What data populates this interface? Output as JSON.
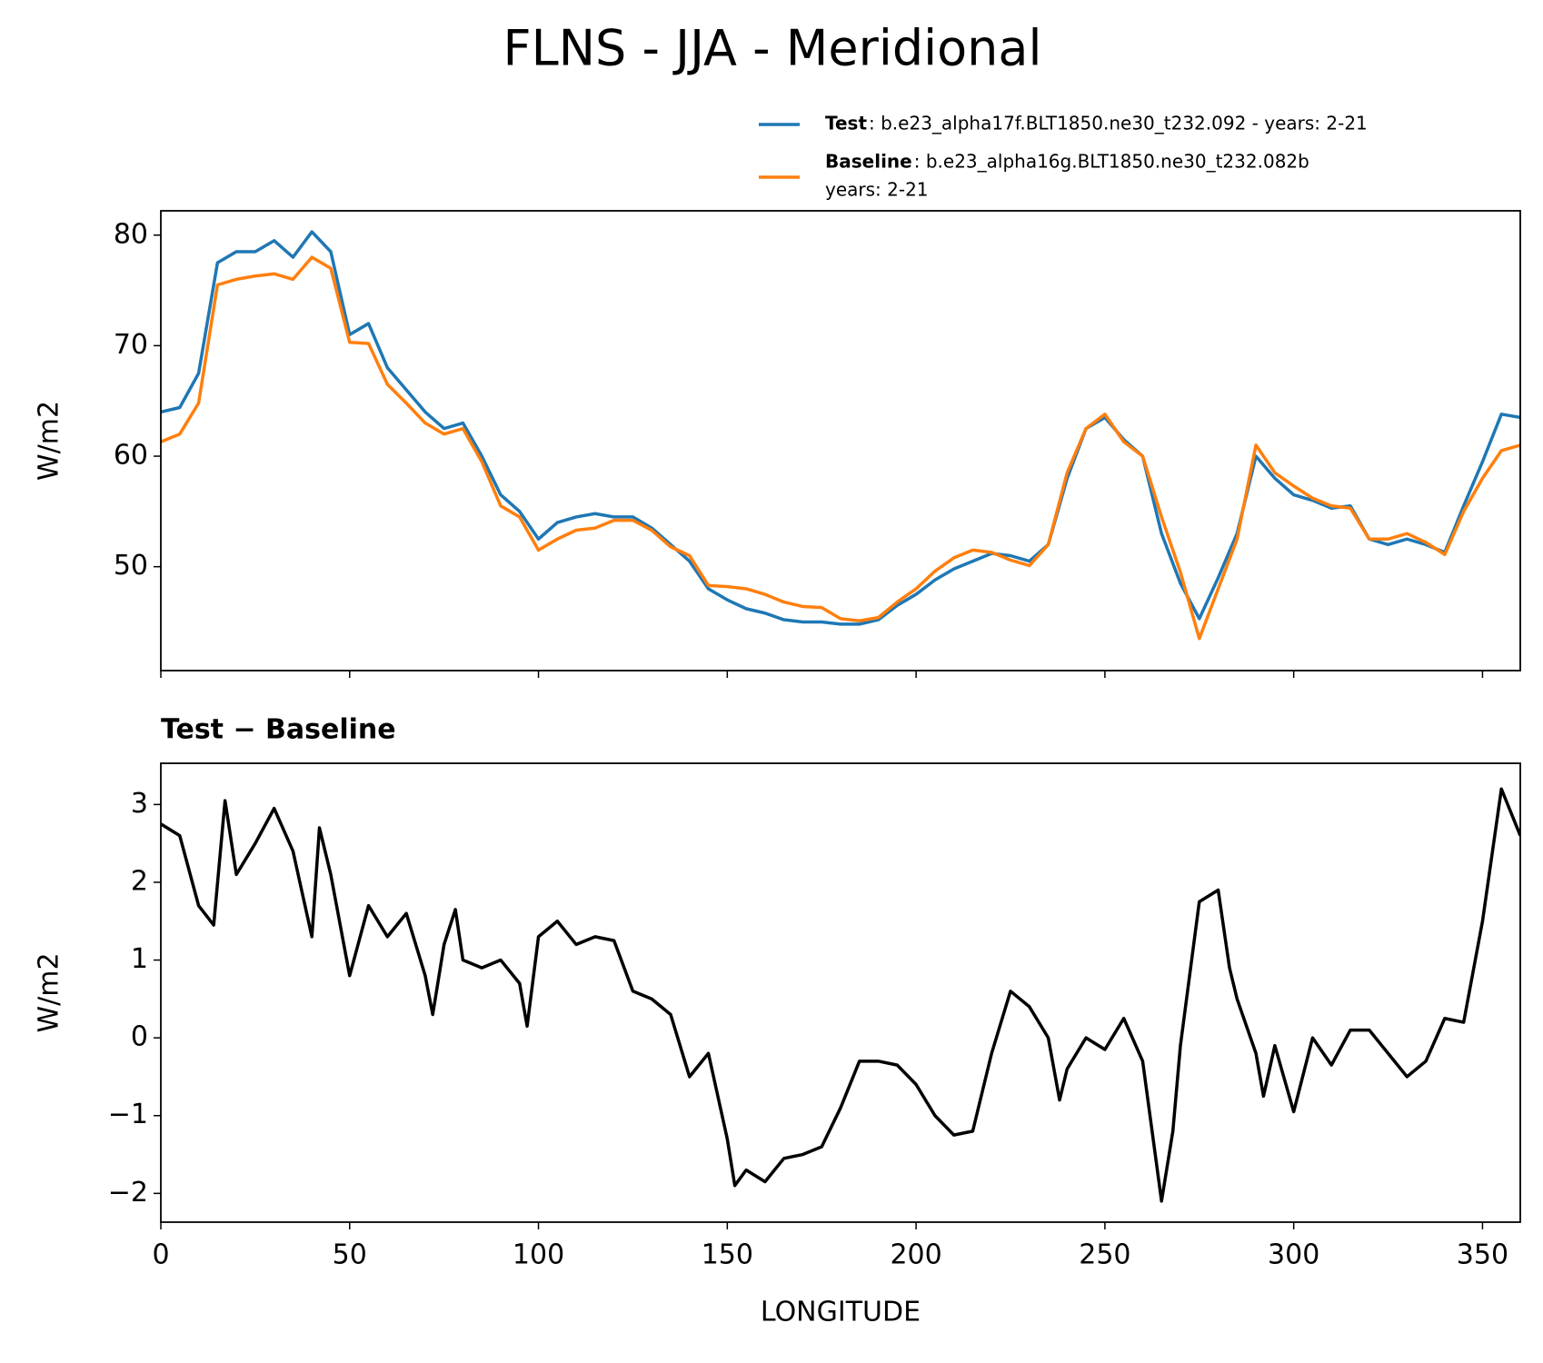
{
  "title": "FLNS - JJA - Meridional",
  "chart_data": [
    {
      "type": "line",
      "ylabel": "W/m2",
      "xlim": [
        0,
        360
      ],
      "xticks": [
        0,
        50,
        100,
        150,
        200,
        250,
        300,
        350
      ],
      "ylim": [
        40.6,
        82.2
      ],
      "yticks": [
        50,
        60,
        70,
        80
      ],
      "x": [
        0,
        5,
        10,
        15,
        20,
        25,
        30,
        35,
        40,
        45,
        50,
        55,
        60,
        65,
        70,
        75,
        80,
        85,
        90,
        95,
        100,
        105,
        110,
        115,
        120,
        125,
        130,
        135,
        140,
        145,
        150,
        155,
        160,
        165,
        170,
        175,
        180,
        185,
        190,
        195,
        200,
        205,
        210,
        215,
        220,
        225,
        230,
        235,
        240,
        245,
        250,
        255,
        260,
        265,
        270,
        275,
        280,
        285,
        290,
        295,
        300,
        305,
        310,
        315,
        320,
        325,
        330,
        335,
        340,
        345,
        350,
        355,
        360
      ],
      "series": [
        {
          "name": "Test",
          "label": ": b.e23_alpha17f.BLT1850.ne30_t232.092 - years: 2-21",
          "color": "#1f77b4",
          "values": [
            64.0,
            64.4,
            67.5,
            77.5,
            78.5,
            78.5,
            79.5,
            78,
            80.3,
            78.5,
            71,
            72,
            68,
            66,
            64,
            62.5,
            63,
            60,
            56.5,
            55,
            52.5,
            54,
            54.5,
            54.8,
            54.5,
            54.5,
            53.5,
            52,
            50.5,
            48,
            47,
            46.2,
            45.8,
            45.2,
            45,
            45,
            44.8,
            44.8,
            45.2,
            46.5,
            47.5,
            48.8,
            49.8,
            50.5,
            51.2,
            51,
            50.5,
            52,
            58,
            62.5,
            63.5,
            61.5,
            60,
            53,
            48.5,
            45.3,
            49,
            53,
            60,
            58,
            56.5,
            56,
            55.3,
            55.5,
            52.5,
            52,
            52.5,
            52,
            51.3,
            55.5,
            59.5,
            63.8,
            63.5
          ]
        },
        {
          "name": "Baseline",
          "label_lines": [
            ": b.e23_alpha16g.BLT1850.ne30_t232.082b",
            "years: 2-21"
          ],
          "color": "#ff7f0e",
          "values": [
            61.3,
            62,
            64.8,
            75.5,
            76,
            76.3,
            76.5,
            76,
            78,
            77,
            70.3,
            70.2,
            66.5,
            64.8,
            63,
            62,
            62.5,
            59.5,
            55.5,
            54.5,
            51.5,
            52.5,
            53.3,
            53.5,
            54.2,
            54.2,
            53.3,
            51.8,
            51,
            48.3,
            48.2,
            48,
            47.5,
            46.8,
            46.4,
            46.3,
            45.3,
            45.1,
            45.4,
            46.8,
            48,
            49.6,
            50.8,
            51.5,
            51.3,
            50.6,
            50.1,
            52,
            58.5,
            62.5,
            63.8,
            61.3,
            60,
            54.5,
            49.5,
            43.5,
            48,
            52.5,
            61,
            58.5,
            57.3,
            56.2,
            55.5,
            55.3,
            52.5,
            52.5,
            53,
            52.2,
            51.1,
            55,
            58,
            60.5,
            61
          ]
        }
      ]
    },
    {
      "type": "line",
      "title": "Test − Baseline",
      "xlabel": "LONGITUDE",
      "ylabel": "W/m2",
      "xlim": [
        0,
        360
      ],
      "xticks": [
        0,
        50,
        100,
        150,
        200,
        250,
        300,
        350
      ],
      "ylim": [
        -2.37,
        3.53
      ],
      "yticks": [
        {
          "value": -2,
          "label": "−2"
        },
        {
          "value": -1,
          "label": "−1"
        },
        0,
        1,
        2,
        3
      ],
      "x": [
        0,
        5,
        10,
        14,
        17,
        20,
        25,
        30,
        35,
        40,
        42,
        45,
        50,
        55,
        60,
        65,
        70,
        72,
        75,
        78,
        80,
        85,
        90,
        95,
        97,
        100,
        105,
        110,
        115,
        120,
        125,
        130,
        135,
        140,
        145,
        150,
        152,
        155,
        160,
        165,
        170,
        175,
        180,
        185,
        190,
        195,
        200,
        205,
        210,
        215,
        220,
        225,
        230,
        235,
        238,
        240,
        245,
        250,
        255,
        260,
        265,
        268,
        270,
        275,
        280,
        283,
        285,
        290,
        292,
        295,
        300,
        305,
        310,
        315,
        320,
        325,
        330,
        335,
        340,
        345,
        350,
        355,
        360
      ],
      "series": [
        {
          "color": "#000000",
          "values": [
            2.75,
            2.6,
            1.7,
            1.45,
            3.05,
            2.1,
            2.5,
            2.95,
            2.4,
            1.3,
            2.7,
            2.1,
            0.8,
            1.7,
            1.3,
            1.6,
            0.8,
            0.3,
            1.2,
            1.65,
            1.0,
            0.9,
            1.0,
            0.7,
            0.15,
            1.3,
            1.5,
            1.2,
            1.3,
            1.25,
            0.6,
            0.5,
            0.3,
            -0.5,
            -0.2,
            -1.3,
            -1.9,
            -1.7,
            -1.85,
            -1.55,
            -1.5,
            -1.4,
            -0.9,
            -0.3,
            -0.3,
            -0.35,
            -0.6,
            -1.0,
            -1.25,
            -1.2,
            -0.2,
            0.6,
            0.4,
            0.0,
            -0.8,
            -0.4,
            0.0,
            -0.15,
            0.25,
            -0.3,
            -2.1,
            -1.2,
            -0.1,
            1.75,
            1.9,
            0.9,
            0.5,
            -0.2,
            -0.75,
            -0.1,
            -0.95,
            0.0,
            -0.35,
            0.1,
            0.1,
            -0.2,
            -0.5,
            -0.3,
            0.25,
            0.2,
            1.5,
            3.2,
            2.6
          ]
        }
      ]
    }
  ]
}
